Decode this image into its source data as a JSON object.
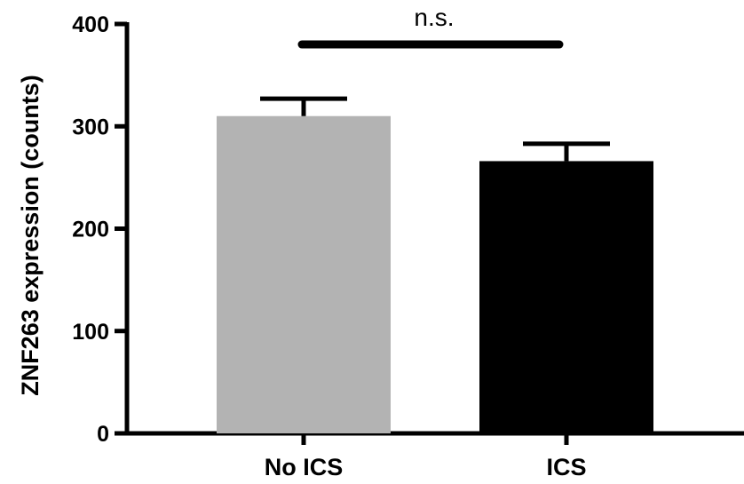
{
  "chart_data": {
    "type": "bar",
    "categories": [
      "No ICS",
      "ICS"
    ],
    "values": [
      310,
      266
    ],
    "error_upper": [
      327,
      283
    ],
    "colors": [
      "#b3b3b3",
      "#000000"
    ],
    "ylabel": "ZNF263 expression (counts)",
    "xlabel": "",
    "ylim": [
      0,
      400
    ],
    "yticks": [
      "0",
      "100",
      "200",
      "300",
      "400"
    ],
    "grid": false,
    "annotation": {
      "label": "n.s.",
      "y": 380
    }
  }
}
